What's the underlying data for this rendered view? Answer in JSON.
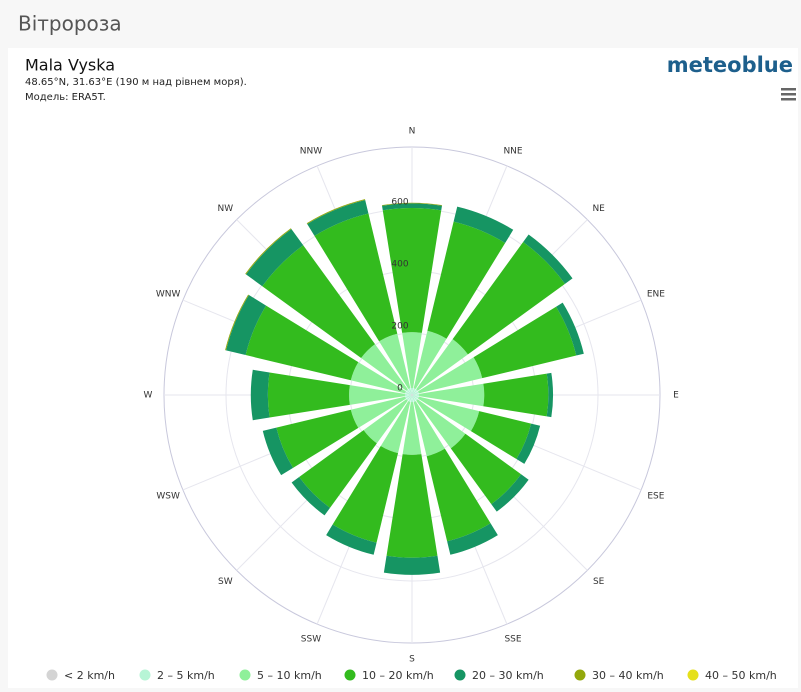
{
  "header": "Вітророза",
  "logo": "meteoblue",
  "chart_data": {
    "type": "windrose",
    "title": "Mala Vyska",
    "subtitle": [
      "48.65°N, 31.63°E (190 м над рівнем моря).",
      "Модель: ERA5T."
    ],
    "categories": [
      "N",
      "NNE",
      "NE",
      "ENE",
      "E",
      "ESE",
      "SE",
      "SSE",
      "S",
      "SSW",
      "SW",
      "WSW",
      "W",
      "WNW",
      "NW",
      "NNW"
    ],
    "ylim": [
      0,
      800
    ],
    "yticks": [
      0,
      200,
      400,
      600
    ],
    "grid": true,
    "series": [
      {
        "name": "< 2 km/h",
        "color": "#d4d4d4",
        "values": [
          3,
          3,
          3,
          3,
          3,
          3,
          3,
          3,
          3,
          3,
          3,
          3,
          3,
          3,
          3,
          3
        ]
      },
      {
        "name": "2 – 5 km/h",
        "color": "#b7f5d6",
        "values": [
          20,
          20,
          20,
          20,
          20,
          20,
          20,
          20,
          20,
          20,
          20,
          20,
          20,
          20,
          20,
          20
        ]
      },
      {
        "name": "5 – 10 km/h",
        "color": "#8ff09a",
        "values": [
          180,
          190,
          200,
          210,
          210,
          200,
          190,
          180,
          170,
          170,
          170,
          180,
          180,
          180,
          180,
          180
        ]
      },
      {
        "name": "10 – 20 km/h",
        "color": "#33bb1e",
        "values": [
          400,
          362,
          387,
          312,
          207,
          172,
          222,
          282,
          332,
          297,
          257,
          247,
          262,
          349,
          394,
          399
        ]
      },
      {
        "name": "20 – 30 km/h",
        "color": "#169563",
        "values": [
          15,
          50,
          30,
          25,
          15,
          30,
          30,
          45,
          55,
          40,
          30,
          45,
          55,
          65,
          65,
          45
        ]
      },
      {
        "name": "30 – 40 km/h",
        "color": "#93a80c",
        "values": [
          2,
          0,
          0,
          0,
          0,
          0,
          0,
          0,
          0,
          0,
          0,
          0,
          0,
          3,
          3,
          3
        ]
      },
      {
        "name": "40 – 50 km/h",
        "color": "#e5e01a",
        "values": [
          0,
          0,
          0,
          0,
          0,
          0,
          0,
          0,
          0,
          0,
          0,
          0,
          0,
          0,
          0,
          0
        ]
      }
    ]
  }
}
